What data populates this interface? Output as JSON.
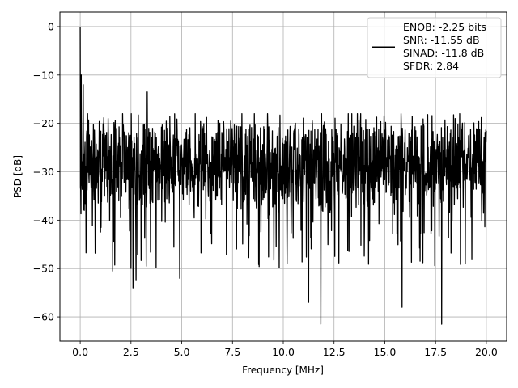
{
  "chart_data": {
    "type": "line",
    "title": "",
    "xlabel": "Frequency [MHz]",
    "ylabel": "PSD [dB]",
    "xlim": [
      -1.0,
      21.0
    ],
    "ylim": [
      -65.0,
      3.0
    ],
    "x_ticks": [
      0.0,
      2.5,
      5.0,
      7.5,
      10.0,
      12.5,
      15.0,
      17.5,
      20.0
    ],
    "x_tick_labels": [
      "0.0",
      "2.5",
      "5.0",
      "7.5",
      "10.0",
      "12.5",
      "15.0",
      "17.5",
      "20.0"
    ],
    "y_ticks": [
      0,
      -10,
      -20,
      -30,
      -40,
      -50,
      -60
    ],
    "y_tick_labels": [
      "0",
      "−10",
      "−20",
      "−30",
      "−40",
      "−50",
      "−60"
    ],
    "grid": true,
    "legend_position": "top-right",
    "legend_lines": [
      "ENOB: -2.25 bits",
      "SNR: -11.55 dB",
      "SINAD: -11.8 dB",
      "SFDR: 2.84"
    ],
    "series": [
      {
        "color": "#000000",
        "x_range": [
          0.0,
          20.0
        ],
        "noise_floor_mean": -29,
        "noise_floor_band": [
          -40,
          -20
        ],
        "features": [
          {
            "x": 0.0,
            "y": 0.0,
            "note": "DC peak"
          },
          {
            "x": 0.05,
            "y": -10.0
          },
          {
            "x": 0.15,
            "y": -12.0
          },
          {
            "x": 3.3,
            "y": -13.5
          },
          {
            "x": 2.6,
            "y": -54.0
          },
          {
            "x": 2.75,
            "y": -52.5
          },
          {
            "x": 1.6,
            "y": -50.5
          },
          {
            "x": 3.25,
            "y": -49.5
          },
          {
            "x": 4.9,
            "y": -52.0
          },
          {
            "x": 11.25,
            "y": -57.0
          },
          {
            "x": 11.85,
            "y": -61.5
          },
          {
            "x": 15.85,
            "y": -58.0
          },
          {
            "x": 17.8,
            "y": -61.5
          }
        ]
      }
    ]
  }
}
